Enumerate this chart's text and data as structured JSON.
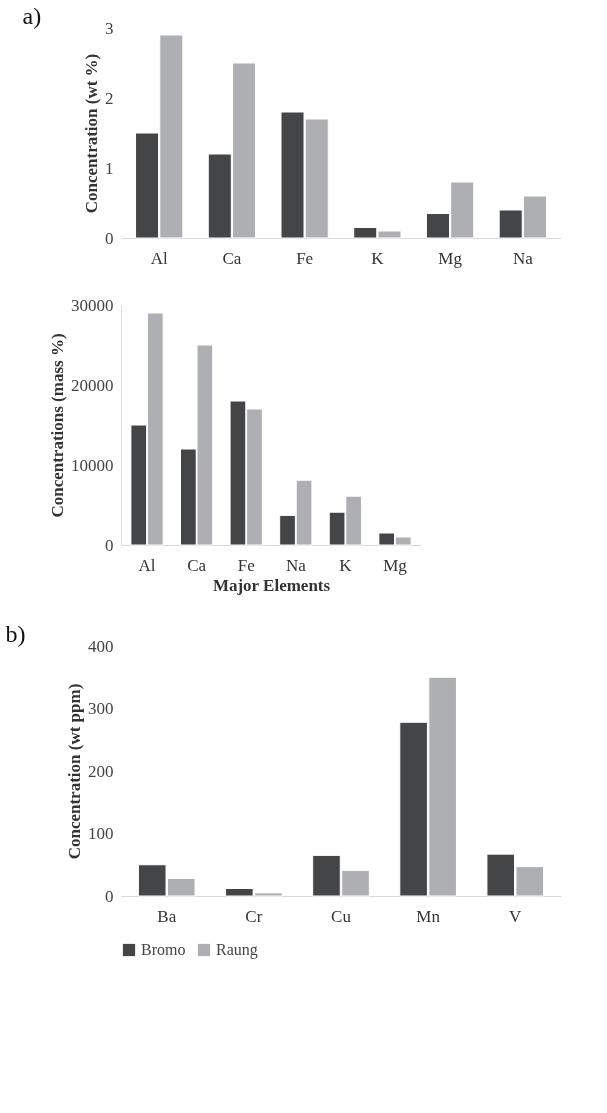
{
  "chart_data": [
    {
      "type": "bar",
      "title": "a)",
      "ylabel": "Concentration (wt %)",
      "categories": [
        "Al",
        "Ca",
        "Fe",
        "K",
        "Mg",
        "Na"
      ],
      "ylim": [
        0,
        3
      ],
      "yticks": [
        0,
        1,
        2,
        3
      ],
      "grid": false,
      "series": [
        {
          "color": "#444547",
          "values": [
            1.5,
            1.2,
            1.8,
            0.15,
            0.35,
            0.4
          ]
        },
        {
          "color": "#aeafb2",
          "values": [
            2.9,
            2.5,
            1.7,
            0.1,
            0.8,
            0.6
          ]
        }
      ]
    },
    {
      "type": "bar",
      "ylabel": "Concentrations (mass %)",
      "xlabel": "Major Elements",
      "categories": [
        "Al",
        "Ca",
        "Fe",
        "Na",
        "K",
        "Mg"
      ],
      "ylim": [
        0,
        30000
      ],
      "yticks": [
        0,
        10000,
        20000,
        30000
      ],
      "grid": false,
      "series": [
        {
          "color": "#444547",
          "values": [
            15000,
            12000,
            18000,
            3700,
            4100,
            1500
          ]
        },
        {
          "color": "#aeafb2",
          "values": [
            29000,
            25000,
            17000,
            8100,
            6100,
            1000
          ]
        }
      ]
    },
    {
      "type": "bar",
      "title": "b)",
      "ylabel": "Concentration (wt ppm)",
      "categories": [
        "Ba",
        "Cr",
        "Cu",
        "Mn",
        "V"
      ],
      "ylim": [
        0,
        400
      ],
      "yticks": [
        0,
        100,
        200,
        300,
        400
      ],
      "grid": false,
      "legend": "bottom",
      "series": [
        {
          "name": "Bromo",
          "color": "#444547",
          "values": [
            50,
            12,
            65,
            278,
            67
          ]
        },
        {
          "name": "Raung",
          "color": "#aeafb2",
          "values": [
            28,
            5,
            41,
            350,
            47
          ]
        }
      ]
    }
  ]
}
